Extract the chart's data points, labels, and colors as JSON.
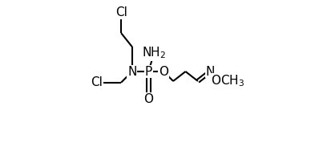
{
  "background": "#ffffff",
  "line_color": "#000000",
  "font_size": 11,
  "lw": 1.5,
  "figsize": [
    3.98,
    1.78
  ],
  "dpi": 100,
  "xlim": [
    0.0,
    1.0
  ],
  "ylim": [
    0.0,
    1.0
  ]
}
